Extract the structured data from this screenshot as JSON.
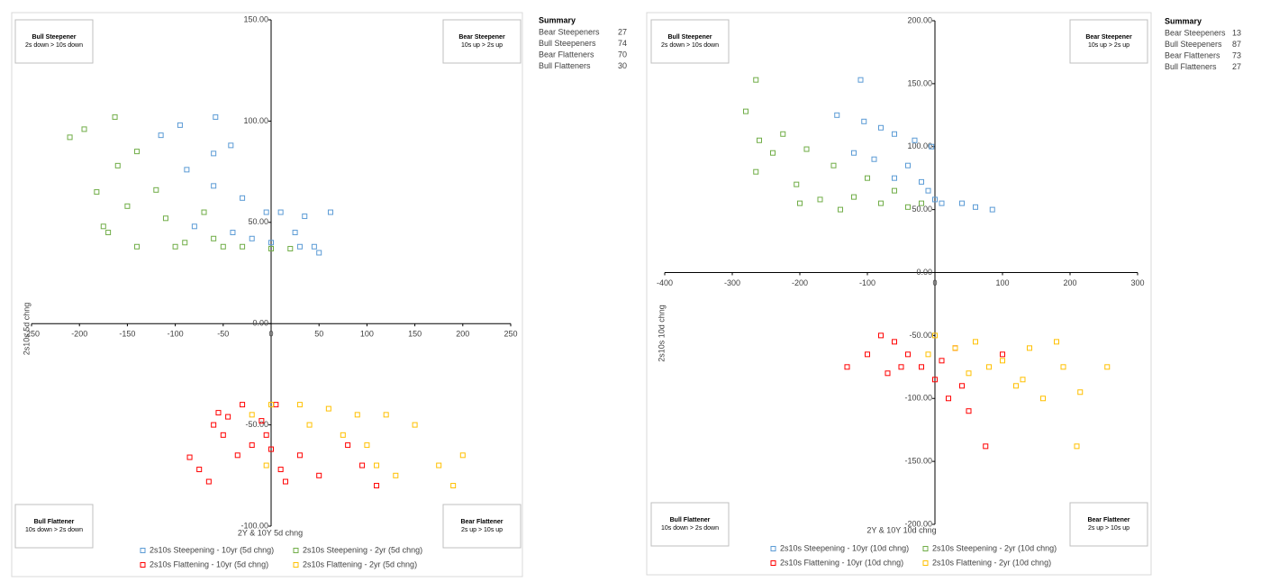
{
  "chart_data": [
    {
      "type": "scatter",
      "x_label": "2Y & 10Y 5d chng",
      "y_label": "2s10s 5d chng",
      "xlim": [
        -250,
        250
      ],
      "ylim": [
        -100,
        150
      ],
      "xticks": [
        -250,
        -200,
        -150,
        -100,
        -50,
        0,
        50,
        100,
        150,
        200,
        250
      ],
      "yticks": [
        {
          "value": 150,
          "label": "150.00"
        },
        {
          "value": 100,
          "label": "100.00"
        },
        {
          "value": 50,
          "label": "50.00"
        },
        {
          "value": 0,
          "label": "0.00"
        },
        {
          "value": -50,
          "label": "-50.00"
        },
        {
          "value": -100,
          "label": "-100.00"
        }
      ],
      "annotations": [
        {
          "corner": "top-left",
          "title": "Bull Steepener",
          "text": "2s down > 10s down"
        },
        {
          "corner": "top-right",
          "title": "Bear Steepener",
          "text": "10s up > 2s up"
        },
        {
          "corner": "bottom-left",
          "title": "Bull Flattener",
          "text": "10s down > 2s down"
        },
        {
          "corner": "bottom-right",
          "title": "Bear Flattener",
          "text": "2s up > 10s up"
        }
      ],
      "summary": {
        "title": "Summary",
        "rows": [
          {
            "label": "Bear Steepeners",
            "value": 27
          },
          {
            "label": "Bull Steepeners",
            "value": 74
          },
          {
            "label": "Bear Flatteners",
            "value": 70
          },
          {
            "label": "Bull Flatteners",
            "value": 30
          }
        ]
      },
      "series": [
        {
          "name": "2s10s Steepening - 10yr (5d chng)",
          "color": "#5b9bd5",
          "x": [
            -58,
            -95,
            -115,
            -42,
            -60,
            -88,
            -30,
            -60,
            -5,
            10,
            35,
            62,
            25,
            -20,
            50,
            45,
            -40,
            0,
            30,
            -80
          ],
          "values": [
            102,
            98,
            93,
            88,
            84,
            76,
            62,
            68,
            55,
            55,
            53,
            55,
            45,
            42,
            35,
            38,
            45,
            40,
            38,
            48
          ]
        },
        {
          "name": "2s10s Steepening - 2yr (5d chng)",
          "color": "#70ad47",
          "x": [
            -210,
            -195,
            -163,
            -160,
            -182,
            -140,
            -120,
            -150,
            -170,
            -110,
            -90,
            -70,
            -50,
            -30,
            0,
            -140,
            -100,
            -60,
            20,
            -175
          ],
          "values": [
            92,
            96,
            102,
            78,
            65,
            85,
            66,
            58,
            45,
            52,
            40,
            55,
            38,
            38,
            37,
            38,
            38,
            42,
            37,
            48
          ]
        },
        {
          "name": "2s10s Flattening - 10yr (5d chng)",
          "color": "#ff0000",
          "x": [
            -85,
            -75,
            -65,
            -50,
            -55,
            -30,
            -10,
            5,
            -20,
            0,
            10,
            15,
            -35,
            -60,
            -5,
            -45,
            110,
            95,
            80,
            50,
            30
          ],
          "values": [
            -66,
            -72,
            -78,
            -55,
            -44,
            -40,
            -48,
            -40,
            -60,
            -62,
            -72,
            -78,
            -65,
            -50,
            -55,
            -46,
            -80,
            -70,
            -60,
            -75,
            -65
          ]
        },
        {
          "name": "2s10s Flattening - 2yr (5d chng)",
          "color": "#ffc000",
          "x": [
            0,
            30,
            60,
            90,
            150,
            175,
            200,
            190,
            130,
            100,
            75,
            40,
            120,
            -20,
            -5,
            110
          ],
          "values": [
            -40,
            -40,
            -42,
            -45,
            -50,
            -70,
            -65,
            -80,
            -75,
            -60,
            -55,
            -50,
            -45,
            -45,
            -70,
            -70
          ]
        }
      ]
    },
    {
      "type": "scatter",
      "x_label": "2Y & 10Y 10d chng",
      "y_label": "2s10s 10d chng",
      "xlim": [
        -400,
        300
      ],
      "ylim": [
        -200,
        200
      ],
      "xticks": [
        -400,
        -300,
        -200,
        -100,
        0,
        100,
        200,
        300
      ],
      "yticks": [
        {
          "value": 200,
          "label": "200.00"
        },
        {
          "value": 150,
          "label": "150.00"
        },
        {
          "value": 100,
          "label": "100.00"
        },
        {
          "value": 50,
          "label": "50.00"
        },
        {
          "value": 0,
          "label": "0.00"
        },
        {
          "value": -50,
          "label": "-50.00"
        },
        {
          "value": -100,
          "label": "-100.00"
        },
        {
          "value": -150,
          "label": "-150.00"
        },
        {
          "value": -200,
          "label": "-200.00"
        }
      ],
      "annotations": [
        {
          "corner": "top-left",
          "title": "Bull Steepener",
          "text": "2s down > 10s down"
        },
        {
          "corner": "top-right",
          "title": "Bear Steepener",
          "text": "10s up > 2s up"
        },
        {
          "corner": "bottom-left",
          "title": "Bull Flattener",
          "text": "10s down > 2s down"
        },
        {
          "corner": "bottom-right",
          "title": "Bear Flattener",
          "text": "2s up > 10s up"
        }
      ],
      "summary": {
        "title": "Summary",
        "rows": [
          {
            "label": "Bear Steepeners",
            "value": 13
          },
          {
            "label": "Bull Steepeners",
            "value": 87
          },
          {
            "label": "Bear Flatteners",
            "value": 73
          },
          {
            "label": "Bull Flatteners",
            "value": 27
          }
        ]
      },
      "series": [
        {
          "name": "2s10s Steepening - 10yr (10d chng)",
          "color": "#5b9bd5",
          "x": [
            -110,
            -145,
            -105,
            -80,
            -60,
            -30,
            -5,
            -120,
            -90,
            -40,
            -20,
            -10,
            10,
            40,
            60,
            85,
            0,
            -60
          ],
          "values": [
            153,
            125,
            120,
            115,
            110,
            105,
            100,
            95,
            90,
            85,
            72,
            65,
            55,
            55,
            52,
            50,
            58,
            75
          ]
        },
        {
          "name": "2s10s Steepening - 2yr (10d chng)",
          "color": "#70ad47",
          "x": [
            -265,
            -280,
            -260,
            -225,
            -240,
            -190,
            -265,
            -205,
            -150,
            -200,
            -170,
            -120,
            -80,
            -60,
            -40,
            -100,
            -140,
            -20
          ],
          "values": [
            153,
            128,
            105,
            110,
            95,
            98,
            80,
            70,
            85,
            55,
            58,
            60,
            55,
            65,
            52,
            75,
            50,
            55
          ]
        },
        {
          "name": "2s10s Flattening - 10yr (10d chng)",
          "color": "#ff0000",
          "x": [
            -130,
            -100,
            -80,
            -60,
            -40,
            -20,
            0,
            20,
            40,
            50,
            75,
            -50,
            30,
            10,
            -70,
            100
          ],
          "values": [
            -75,
            -65,
            -50,
            -55,
            -65,
            -75,
            -85,
            -100,
            -90,
            -110,
            -138,
            -75,
            -60,
            -70,
            -80,
            -65
          ]
        },
        {
          "name": "2s10s Flattening - 2yr (10d chng)",
          "color": "#ffc000",
          "x": [
            0,
            30,
            60,
            100,
            130,
            160,
            190,
            215,
            255,
            210,
            120,
            80,
            -10,
            180,
            140,
            50
          ],
          "values": [
            -50,
            -60,
            -55,
            -70,
            -85,
            -100,
            -75,
            -95,
            -75,
            -138,
            -90,
            -75,
            -65,
            -55,
            -60,
            -80
          ]
        }
      ]
    }
  ]
}
